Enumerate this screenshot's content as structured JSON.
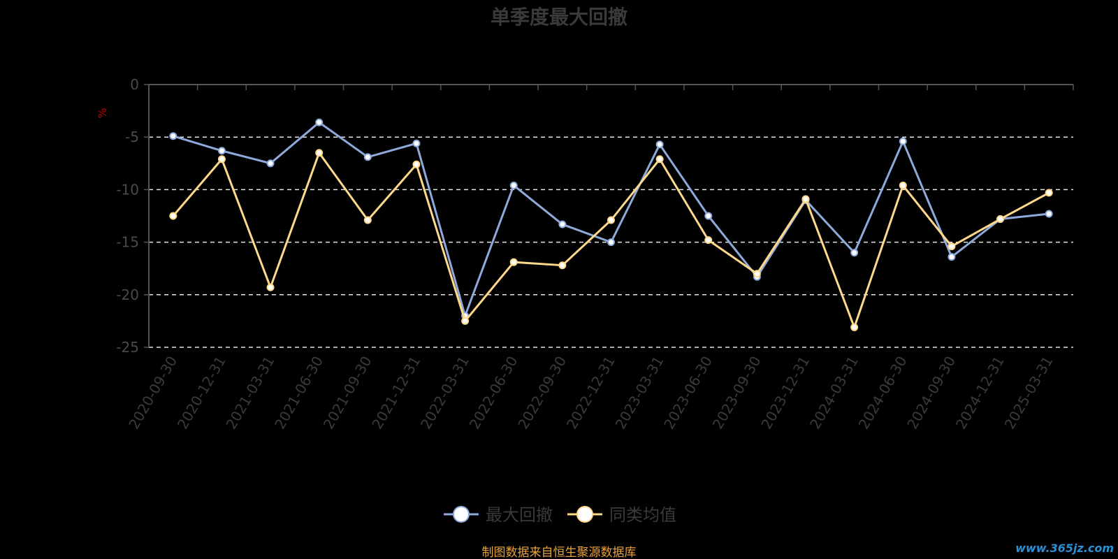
{
  "chart_data": {
    "type": "line",
    "title": "单季度最大回撤",
    "ylabel": "%",
    "ylim": [
      -25,
      0
    ],
    "yticks": [
      0,
      -5,
      -10,
      -15,
      -20,
      -25
    ],
    "grid": true,
    "legend_position": "bottom-center",
    "categories": [
      "2020-09-30",
      "2020-12-31",
      "2021-03-31",
      "2021-06-30",
      "2021-09-30",
      "2021-12-31",
      "2022-03-31",
      "2022-06-30",
      "2022-09-30",
      "2022-12-31",
      "2023-03-31",
      "2023-06-30",
      "2023-09-30",
      "2023-12-31",
      "2024-03-31",
      "2024-06-30",
      "2024-09-30",
      "2024-12-31",
      "2025-03-31"
    ],
    "series": [
      {
        "name": "最大回撤",
        "color": "#8eaadb",
        "values": [
          -4.9,
          -6.3,
          -7.5,
          -3.6,
          -6.9,
          -5.6,
          -22.0,
          -9.6,
          -13.3,
          -15.0,
          -5.7,
          -12.5,
          -18.3,
          -11.0,
          -16.0,
          -5.4,
          -16.4,
          -12.8,
          -12.3
        ]
      },
      {
        "name": "同类均值",
        "color": "#ffd98a",
        "values": [
          -12.5,
          -7.1,
          -19.3,
          -6.5,
          -12.9,
          -7.6,
          -22.5,
          -16.9,
          -17.2,
          -12.9,
          -7.1,
          -14.8,
          -18.0,
          -10.9,
          -23.1,
          -9.6,
          -15.4,
          -12.8,
          -10.3
        ]
      }
    ]
  },
  "footer": {
    "source": "制图数据来自恒生聚源数据库",
    "watermark": "www.365jz.com"
  }
}
